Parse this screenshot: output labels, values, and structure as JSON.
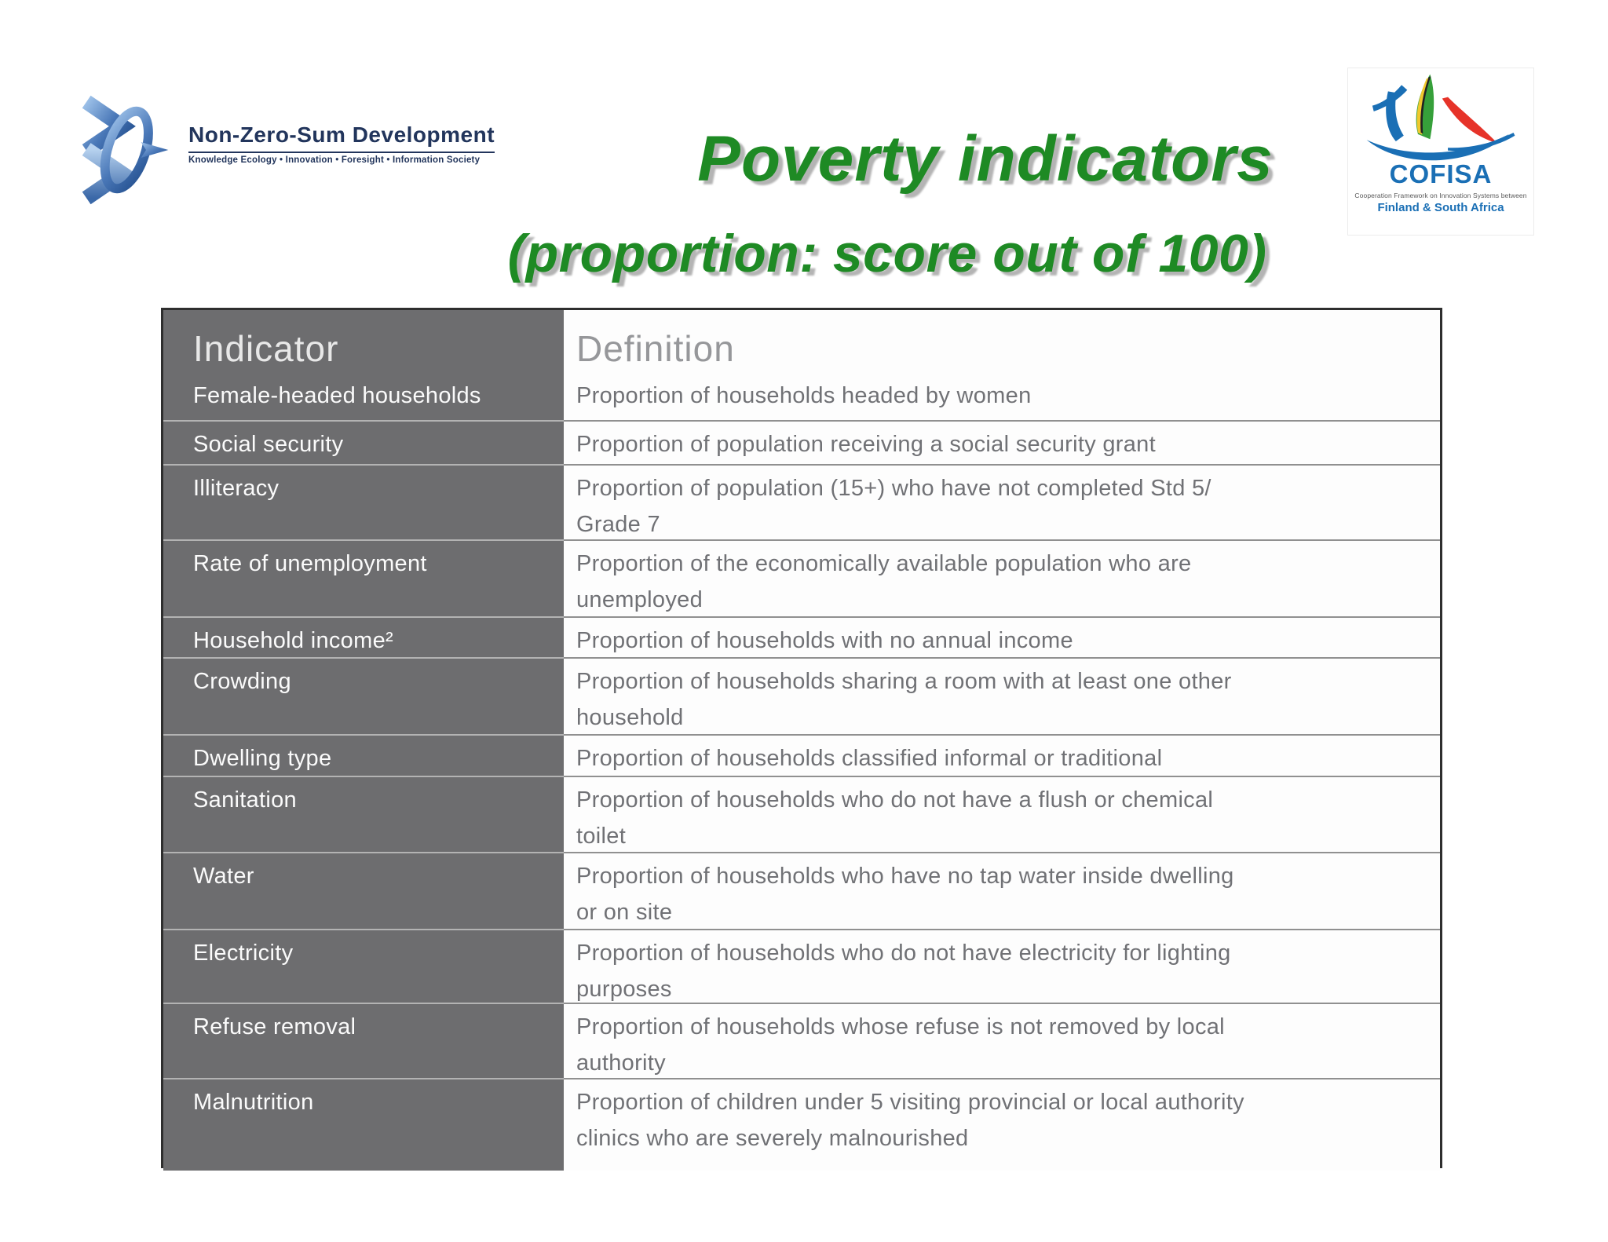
{
  "slide": {
    "background": "#ffffff"
  },
  "nzs_logo": {
    "title": "Non-Zero-Sum Development",
    "tagline": "Knowledge Ecology • Innovation • Foresight • Information Society",
    "text_color": "#22355c",
    "mark_colors": [
      "#8fb3dd",
      "#4a78b8",
      "#24508f"
    ]
  },
  "title": {
    "line1": "Poverty indicators",
    "line2": "(proportion: score out of 100)",
    "color": "#1e8a24",
    "shadow_color": "#b4b4b4"
  },
  "cofisa_logo": {
    "name": "COFISA",
    "subtitle": "Cooperation Framework on Innovation Systems between",
    "countries": "Finland & South Africa",
    "blue": "#1a6fb5",
    "red": "#e63329",
    "green": "#36a03a",
    "yellow": "#f0c82d"
  },
  "table": {
    "header": {
      "indicator": "Indicator",
      "definition": "Definition"
    },
    "colors": {
      "left_column_bg": "#6d6d6f",
      "outer_border": "#2e2e2e",
      "left_label_text": "#fbfbfb",
      "definition_text": "#707175",
      "header_indicator_text": "#e8e8e8",
      "header_definition_text": "#96979a",
      "separator_left": "#b3b3b3",
      "separator_right": "#909090"
    },
    "rows": [
      {
        "indicator": "Female-headed households",
        "definition_lines": [
          "Proportion of households headed by women"
        ]
      },
      {
        "indicator": "Social security",
        "definition_lines": [
          "Proportion of population receiving a social security grant"
        ]
      },
      {
        "indicator": "Illiteracy",
        "definition_lines": [
          "Proportion of population (15+) who have not completed Std 5/",
          "Grade 7"
        ]
      },
      {
        "indicator": "Rate of unemployment",
        "definition_lines": [
          "Proportion of the economically available population who are",
          "unemployed"
        ]
      },
      {
        "indicator": "Household income²",
        "definition_lines": [
          "Proportion of households with no annual income"
        ]
      },
      {
        "indicator": "Crowding",
        "definition_lines": [
          "Proportion of households sharing a room with at least one other",
          "household"
        ]
      },
      {
        "indicator": "Dwelling type",
        "definition_lines": [
          "Proportion of households classified informal or traditional"
        ]
      },
      {
        "indicator": "Sanitation",
        "definition_lines": [
          "Proportion of households who do not have a flush or chemical",
          "toilet"
        ]
      },
      {
        "indicator": "Water",
        "definition_lines": [
          "Proportion of households who have no tap water inside dwelling",
          "or on site"
        ]
      },
      {
        "indicator": "Electricity",
        "definition_lines": [
          "Proportion of households who do not have electricity for lighting",
          "purposes"
        ]
      },
      {
        "indicator": "Refuse removal",
        "definition_lines": [
          "Proportion of households whose refuse is not removed by local",
          "authority"
        ]
      },
      {
        "indicator": "Malnutrition",
        "definition_lines": [
          "Proportion of children under 5 visiting provincial or local authority",
          "clinics who are severely malnourished"
        ]
      }
    ]
  }
}
